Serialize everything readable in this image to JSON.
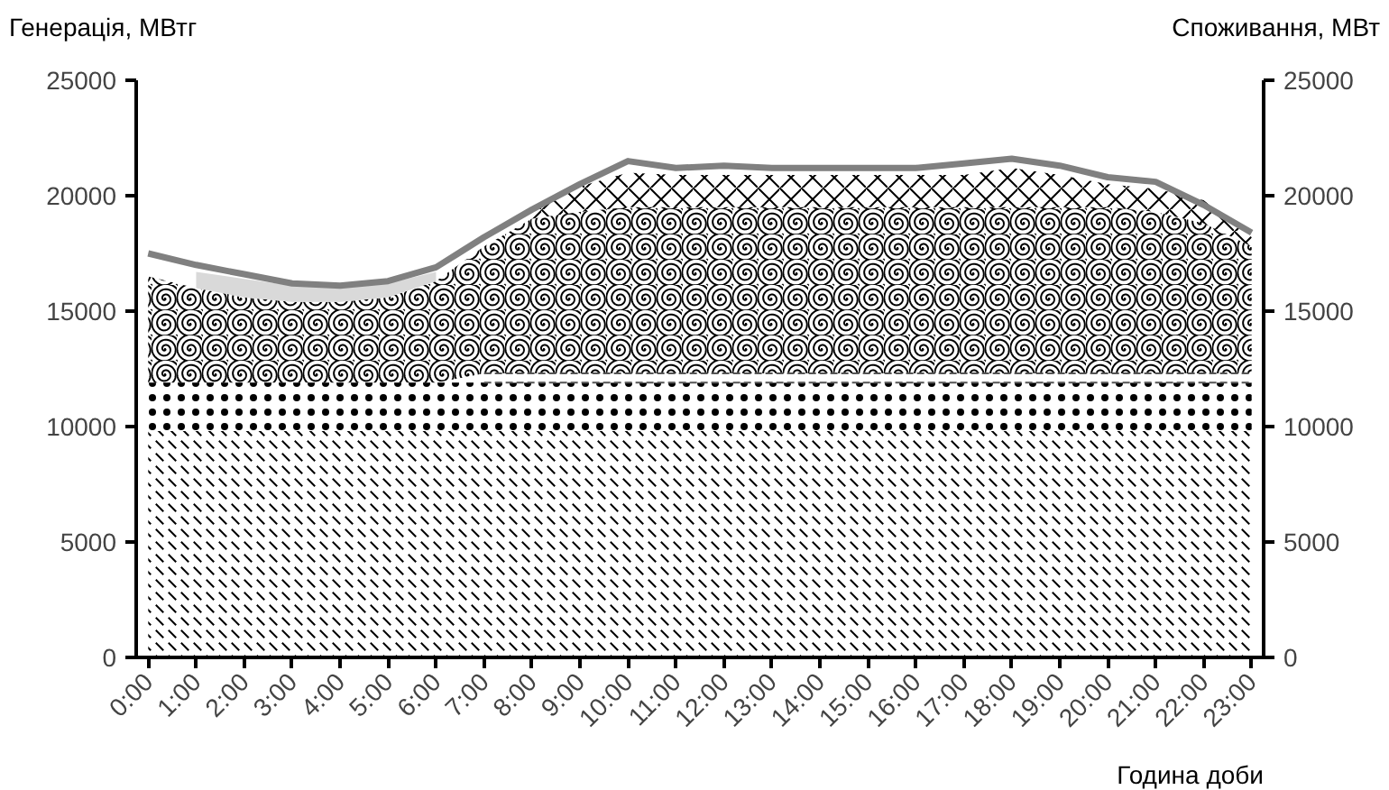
{
  "chart_data": {
    "type": "area",
    "stacked": true,
    "xlabel": "Година доби",
    "ylabel": "Генерація, МВтг",
    "y2label": "Споживання, МВт",
    "categories": [
      "0:00",
      "1:00",
      "2:00",
      "3:00",
      "4:00",
      "5:00",
      "6:00",
      "7:00",
      "8:00",
      "9:00",
      "10:00",
      "11:00",
      "12:00",
      "13:00",
      "14:00",
      "15:00",
      "16:00",
      "17:00",
      "18:00",
      "19:00",
      "20:00",
      "21:00",
      "22:00",
      "23:00"
    ],
    "series": [
      {
        "color": "#000000",
        "values": [
          9800,
          9800,
          9800,
          9800,
          9800,
          9800,
          9800,
          9800,
          9800,
          9800,
          9800,
          9800,
          9800,
          9800,
          9800,
          9800,
          9800,
          9800,
          9800,
          9800,
          9800,
          9800,
          9800,
          9800
        ]
      },
      {
        "color": "#000000",
        "values": [
          2100,
          2100,
          2100,
          2100,
          2100,
          2100,
          2100,
          2100,
          2100,
          2100,
          2100,
          2100,
          2100,
          2100,
          2100,
          2100,
          2100,
          2100,
          2100,
          2100,
          2100,
          2100,
          2100,
          2100
        ]
      },
      {
        "color": "#555555",
        "values": [
          null,
          null,
          null,
          null,
          null,
          null,
          null,
          400,
          400,
          400,
          400,
          400,
          400,
          400,
          400,
          400,
          400,
          400,
          400,
          400,
          400,
          400,
          400,
          400
        ]
      },
      {
        "color": "#000000",
        "values": [
          4600,
          4100,
          3700,
          3500,
          3500,
          3700,
          4400,
          5500,
          6700,
          7000,
          7200,
          7200,
          7200,
          7200,
          7200,
          7200,
          7200,
          7200,
          7200,
          7200,
          7200,
          7000,
          6500,
          5500
        ]
      },
      {
        "color": "#d9d9d9",
        "values": [
          null,
          700,
          800,
          700,
          600,
          600,
          400,
          null,
          null,
          null,
          null,
          null,
          null,
          null,
          null,
          null,
          null,
          null,
          null,
          null,
          null,
          null,
          null,
          null
        ]
      },
      {
        "color": "#000000",
        "values": [
          null,
          null,
          null,
          null,
          null,
          null,
          null,
          null,
          400,
          1100,
          1500,
          1400,
          1400,
          1400,
          1400,
          1400,
          1400,
          1400,
          1700,
          1400,
          1000,
          1000,
          1000,
          400
        ]
      },
      {
        "type": "line",
        "axis": "y2",
        "color": "#808080",
        "values": [
          17500,
          17000,
          16600,
          16200,
          16100,
          16300,
          16900,
          18200,
          19400,
          20500,
          21500,
          21200,
          21300,
          21200,
          21200,
          21200,
          21200,
          21400,
          21600,
          21300,
          20800,
          20600,
          19600,
          18400
        ]
      }
    ],
    "ylim": [
      0,
      25000
    ],
    "yticks": [
      0,
      5000,
      10000,
      15000,
      20000,
      25000
    ],
    "y2lim": [
      0,
      25000
    ],
    "y2ticks": [
      0,
      5000,
      10000,
      15000,
      20000,
      25000
    ]
  }
}
